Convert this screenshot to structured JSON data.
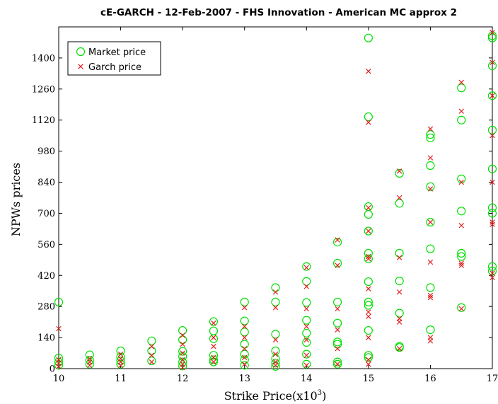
{
  "chart_data": {
    "type": "scatter",
    "title": "cE-GARCH  - 12-Feb-2007 -  FHS Innovation - American MC approx 2",
    "xlabel": "Strike Price(x10",
    "xlabel_sup": "3",
    "xlabel_close": ")",
    "ylabel": "NPWs prices",
    "xlim": [
      10,
      17
    ],
    "ylim": [
      0,
      1540
    ],
    "x_ticks": [
      10,
      11,
      12,
      13,
      14,
      15,
      16,
      17
    ],
    "y_ticks": [
      0,
      140,
      280,
      420,
      560,
      700,
      840,
      980,
      1120,
      1260,
      1400
    ],
    "grid": false,
    "legend_position": "top-left",
    "colors": {
      "market": "#00e000",
      "garch": "#e02020"
    },
    "series": [
      {
        "name": "Market price",
        "marker": "circle",
        "points": [
          [
            10,
            300
          ],
          [
            10,
            48
          ],
          [
            10,
            30
          ],
          [
            10,
            15
          ],
          [
            10.5,
            62
          ],
          [
            10.5,
            38
          ],
          [
            10.5,
            20
          ],
          [
            11,
            80
          ],
          [
            11,
            52
          ],
          [
            11,
            35
          ],
          [
            11,
            20
          ],
          [
            11.5,
            125
          ],
          [
            11.5,
            80
          ],
          [
            11.5,
            35
          ],
          [
            12,
            172
          ],
          [
            12,
            130
          ],
          [
            12,
            78
          ],
          [
            12,
            55
          ],
          [
            12,
            30
          ],
          [
            12,
            12
          ],
          [
            12.5,
            212
          ],
          [
            12.5,
            170
          ],
          [
            12.5,
            135
          ],
          [
            12.5,
            60
          ],
          [
            12.5,
            40
          ],
          [
            12.5,
            30
          ],
          [
            13,
            300
          ],
          [
            13,
            215
          ],
          [
            13,
            165
          ],
          [
            13,
            110
          ],
          [
            13,
            65
          ],
          [
            13,
            40
          ],
          [
            13,
            15
          ],
          [
            13.5,
            365
          ],
          [
            13.5,
            300
          ],
          [
            13.5,
            155
          ],
          [
            13.5,
            80
          ],
          [
            13.5,
            45
          ],
          [
            13.5,
            25
          ],
          [
            13.5,
            10
          ],
          [
            14,
            460
          ],
          [
            14,
            393
          ],
          [
            14,
            298
          ],
          [
            14,
            218
          ],
          [
            14,
            160
          ],
          [
            14,
            118
          ],
          [
            14,
            65
          ],
          [
            14,
            20
          ],
          [
            14.5,
            570
          ],
          [
            14.5,
            475
          ],
          [
            14.5,
            300
          ],
          [
            14.5,
            205
          ],
          [
            14.5,
            120
          ],
          [
            14.5,
            110
          ],
          [
            14.5,
            30
          ],
          [
            14.5,
            20
          ],
          [
            15,
            1490
          ],
          [
            15,
            1135
          ],
          [
            15,
            730
          ],
          [
            15,
            695
          ],
          [
            15,
            620
          ],
          [
            15,
            520
          ],
          [
            15,
            495
          ],
          [
            15,
            392
          ],
          [
            15,
            300
          ],
          [
            15,
            285
          ],
          [
            15,
            172
          ],
          [
            15,
            60
          ],
          [
            15,
            50
          ],
          [
            15.5,
            880
          ],
          [
            15.5,
            745
          ],
          [
            15.5,
            520
          ],
          [
            15.5,
            395
          ],
          [
            15.5,
            250
          ],
          [
            15.5,
            100
          ],
          [
            15.5,
            95
          ],
          [
            16,
            1055
          ],
          [
            16,
            1040
          ],
          [
            16,
            915
          ],
          [
            16,
            820
          ],
          [
            16,
            660
          ],
          [
            16,
            540
          ],
          [
            16,
            365
          ],
          [
            16,
            175
          ],
          [
            16.5,
            1265
          ],
          [
            16.5,
            1120
          ],
          [
            16.5,
            855
          ],
          [
            16.5,
            710
          ],
          [
            16.5,
            520
          ],
          [
            16.5,
            505
          ],
          [
            16.5,
            275
          ],
          [
            17,
            1500
          ],
          [
            17,
            1490
          ],
          [
            17,
            1365
          ],
          [
            17,
            1230
          ],
          [
            17,
            1075
          ],
          [
            17,
            900
          ],
          [
            17,
            725
          ],
          [
            17,
            700
          ],
          [
            17,
            460
          ],
          [
            17,
            440
          ]
        ]
      },
      {
        "name": "Garch price",
        "marker": "x",
        "points": [
          [
            10,
            180
          ],
          [
            10,
            40
          ],
          [
            10,
            25
          ],
          [
            10,
            10
          ],
          [
            10.5,
            45
          ],
          [
            10.5,
            30
          ],
          [
            10.5,
            15
          ],
          [
            11,
            65
          ],
          [
            11,
            45
          ],
          [
            11,
            30
          ],
          [
            11,
            15
          ],
          [
            11.5,
            100
          ],
          [
            11.5,
            60
          ],
          [
            11.5,
            30
          ],
          [
            12,
            150
          ],
          [
            12,
            110
          ],
          [
            12,
            70
          ],
          [
            12,
            40
          ],
          [
            12,
            20
          ],
          [
            12,
            5
          ],
          [
            12.5,
            205
          ],
          [
            12.5,
            140
          ],
          [
            12.5,
            100
          ],
          [
            12.5,
            50
          ],
          [
            12.5,
            30
          ],
          [
            13,
            275
          ],
          [
            13,
            190
          ],
          [
            13,
            140
          ],
          [
            13,
            90
          ],
          [
            13,
            50
          ],
          [
            13,
            20
          ],
          [
            13.5,
            345
          ],
          [
            13.5,
            275
          ],
          [
            13.5,
            130
          ],
          [
            13.5,
            65
          ],
          [
            13.5,
            30
          ],
          [
            13.5,
            15
          ],
          [
            14,
            455
          ],
          [
            14,
            370
          ],
          [
            14,
            270
          ],
          [
            14,
            190
          ],
          [
            14,
            130
          ],
          [
            14,
            60
          ],
          [
            14,
            15
          ],
          [
            14.5,
            580
          ],
          [
            14.5,
            465
          ],
          [
            14.5,
            270
          ],
          [
            14.5,
            175
          ],
          [
            14.5,
            90
          ],
          [
            14.5,
            20
          ],
          [
            15,
            1340
          ],
          [
            15,
            1110
          ],
          [
            15,
            725
          ],
          [
            15,
            620
          ],
          [
            15,
            505
          ],
          [
            15,
            495
          ],
          [
            15,
            360
          ],
          [
            15,
            255
          ],
          [
            15,
            235
          ],
          [
            15,
            140
          ],
          [
            15,
            40
          ],
          [
            15,
            20
          ],
          [
            15.5,
            890
          ],
          [
            15.5,
            770
          ],
          [
            15.5,
            500
          ],
          [
            15.5,
            345
          ],
          [
            15.5,
            225
          ],
          [
            15.5,
            210
          ],
          [
            15.5,
            90
          ],
          [
            16,
            1080
          ],
          [
            16,
            950
          ],
          [
            16,
            810
          ],
          [
            16,
            660
          ],
          [
            16,
            480
          ],
          [
            16,
            330
          ],
          [
            16,
            320
          ],
          [
            16,
            140
          ],
          [
            16,
            125
          ],
          [
            16.5,
            1290
          ],
          [
            16.5,
            1160
          ],
          [
            16.5,
            840
          ],
          [
            16.5,
            645
          ],
          [
            16.5,
            475
          ],
          [
            16.5,
            465
          ],
          [
            16.5,
            270
          ],
          [
            17,
            1515
          ],
          [
            17,
            1380
          ],
          [
            17,
            1230
          ],
          [
            17,
            1050
          ],
          [
            17,
            840
          ],
          [
            17,
            660
          ],
          [
            17,
            650
          ],
          [
            17,
            430
          ],
          [
            17,
            410
          ]
        ]
      }
    ]
  }
}
